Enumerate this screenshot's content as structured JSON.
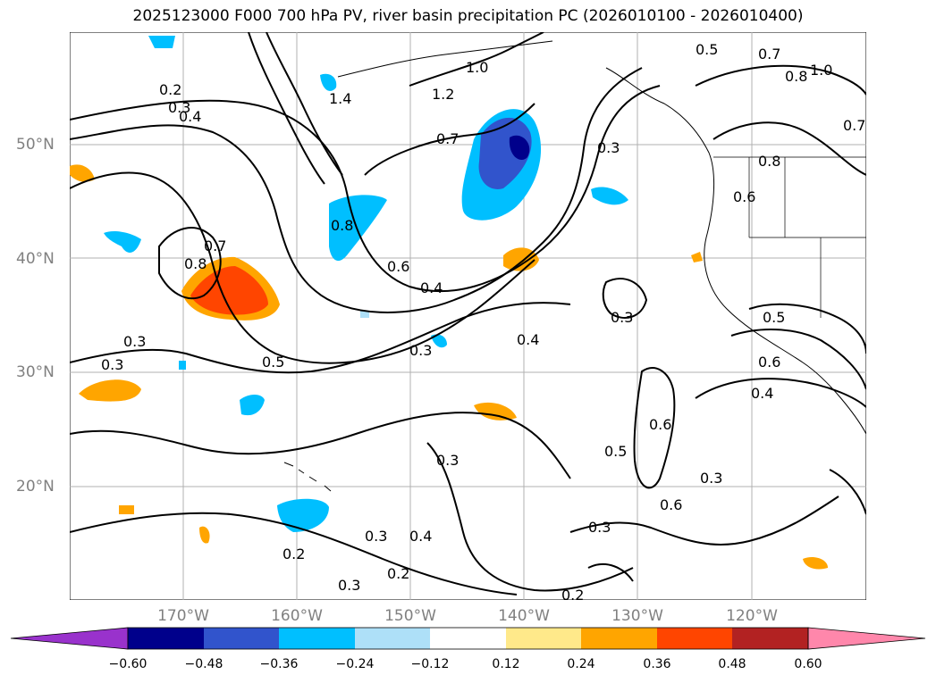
{
  "title": "2025123000 F000 700 hPa PV, river basin precipitation PC (2026010100 - 2026010400)",
  "latitude_labels": [
    "50°N",
    "40°N",
    "30°N",
    "20°N"
  ],
  "longitude_labels": [
    "170°W",
    "160°W",
    "150°W",
    "140°W",
    "130°W",
    "120°W"
  ],
  "contour_labels": [
    "0.2",
    "0.3",
    "0.4",
    "0.5",
    "0.6",
    "0.7",
    "0.8",
    "1.0",
    "1.2",
    "1.4"
  ],
  "colorbar": {
    "ticks": [
      "−0.60",
      "−0.48",
      "−0.36",
      "−0.24",
      "−0.12",
      "0.12",
      "0.24",
      "0.36",
      "0.48",
      "0.60"
    ],
    "colors": [
      "#9932cc",
      "#00008b",
      "#3154cc",
      "#00bfff",
      "#aee0f8",
      "#ffffff",
      "#ffe98a",
      "#ffa500",
      "#ff4500",
      "#b22222",
      "#ff87ab"
    ]
  },
  "colors": {
    "gridline": "#b0b0b0",
    "contour": "#000000",
    "axis_label": "#808080"
  }
}
